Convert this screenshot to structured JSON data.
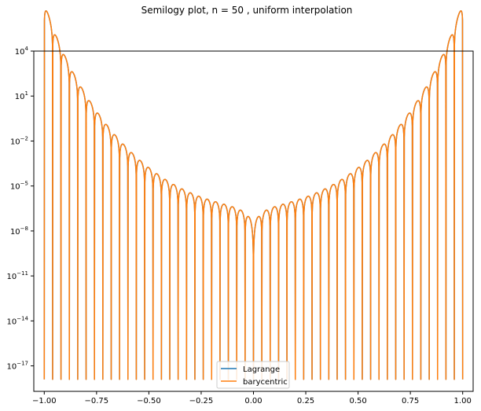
{
  "chart_data": {
    "type": "line",
    "title": "Semilogy plot, n = 50 , uniform interpolation",
    "xlabel": "",
    "ylabel": "",
    "xlim": [
      -1.05,
      1.05
    ],
    "ylim_exponents": [
      -18.7,
      4.0
    ],
    "y_scale": "log",
    "grid": false,
    "legend_position": "lower-center",
    "x_ticks": [
      -1.0,
      -0.75,
      -0.5,
      -0.25,
      0.0,
      0.25,
      0.5,
      0.75,
      1.0
    ],
    "x_tick_labels": [
      "−1.00",
      "−0.75",
      "−0.50",
      "−0.25",
      "0.00",
      "0.25",
      "0.50",
      "0.75",
      "1.00"
    ],
    "y_ticks": [
      {
        "base": "10",
        "exp": "4",
        "value": 4
      },
      {
        "base": "10",
        "exp": "1",
        "value": 1
      },
      {
        "base": "10",
        "exp": "−2",
        "value": -2
      },
      {
        "base": "10",
        "exp": "−5",
        "value": -5
      },
      {
        "base": "10",
        "exp": "−8",
        "value": -8
      },
      {
        "base": "10",
        "exp": "−11",
        "value": -11
      },
      {
        "base": "10",
        "exp": "−14",
        "value": -14
      },
      {
        "base": "10",
        "exp": "−17",
        "value": -17
      }
    ],
    "series": [
      {
        "name": "Lagrange",
        "color": "#1f77b4",
        "n": 50,
        "x": [
          -1.0,
          1.0
        ]
      },
      {
        "name": "barycentric",
        "color": "#ff7f0e",
        "n": 50,
        "x": [
          -1.0,
          1.0
        ]
      }
    ]
  }
}
